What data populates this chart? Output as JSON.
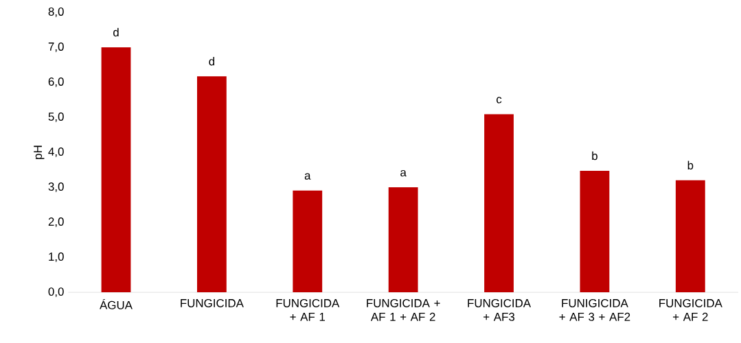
{
  "chart_data": {
    "type": "bar",
    "ylabel": "pH",
    "categories": [
      "ÁGUA",
      "FUNGICIDA",
      "FUNGICIDA + AF 1",
      "FUNGICIDA + AF 1 + AF 2",
      "FUNGICIDA + AF3",
      "FUNIGICIDA + AF 3 + AF2",
      "FUNGICIDA + AF 2"
    ],
    "values": [
      7.0,
      6.17,
      2.91,
      3.0,
      5.09,
      3.47,
      3.2
    ],
    "value_labels": [
      "d",
      "d",
      "a",
      "a",
      "c",
      "b",
      "b"
    ],
    "color": "#c00000",
    "ylim": [
      0,
      8
    ],
    "yticks": [
      {
        "value": 0,
        "label": "0,0"
      },
      {
        "value": 1,
        "label": "1,0"
      },
      {
        "value": 2,
        "label": "2,0"
      },
      {
        "value": 3,
        "label": "3,0"
      },
      {
        "value": 4,
        "label": "4,0"
      },
      {
        "value": 5,
        "label": "5,0"
      },
      {
        "value": 6,
        "label": "6,0"
      },
      {
        "value": 7,
        "label": "7,0"
      },
      {
        "value": 8,
        "label": "8,0"
      }
    ],
    "grid": false
  }
}
